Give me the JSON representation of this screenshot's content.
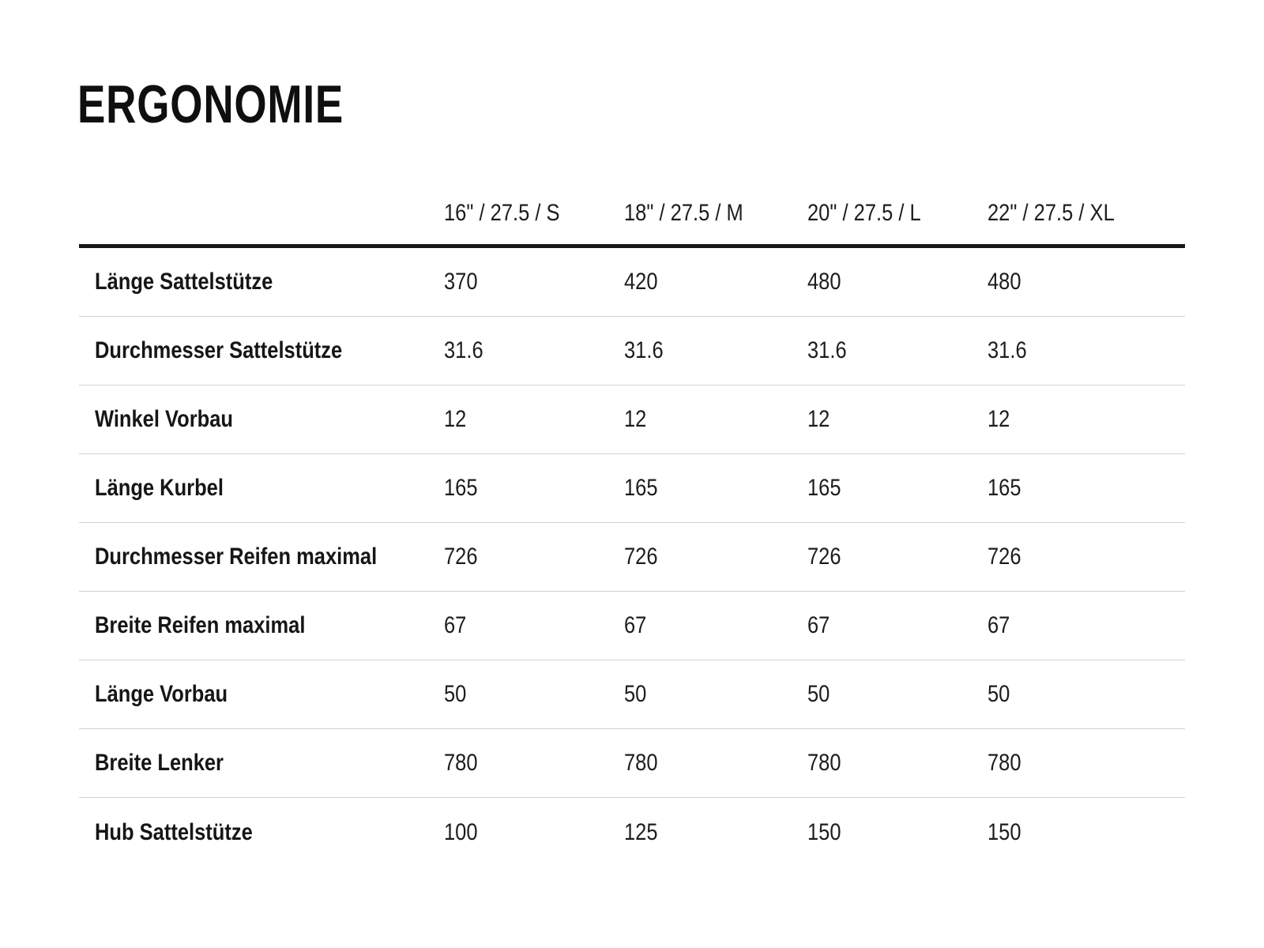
{
  "page": {
    "title": "ERGONOMIE"
  },
  "table": {
    "column_headers": [
      "16\" / 27.5 / S",
      "18\" / 27.5 / M",
      "20\" / 27.5 / L",
      "22\" / 27.5 / XL"
    ],
    "rows": [
      {
        "label": "Länge Sattelstütze",
        "values": [
          "370",
          "420",
          "480",
          "480"
        ]
      },
      {
        "label": "Durchmesser Sattelstütze",
        "values": [
          "31.6",
          "31.6",
          "31.6",
          "31.6"
        ]
      },
      {
        "label": "Winkel Vorbau",
        "values": [
          "12",
          "12",
          "12",
          "12"
        ]
      },
      {
        "label": "Länge Kurbel",
        "values": [
          "165",
          "165",
          "165",
          "165"
        ]
      },
      {
        "label": "Durchmesser Reifen maximal",
        "values": [
          "726",
          "726",
          "726",
          "726"
        ]
      },
      {
        "label": "Breite Reifen maximal",
        "values": [
          "67",
          "67",
          "67",
          "67"
        ]
      },
      {
        "label": "Länge Vorbau",
        "values": [
          "50",
          "50",
          "50",
          "50"
        ]
      },
      {
        "label": "Breite Lenker",
        "values": [
          "780",
          "780",
          "780",
          "780"
        ]
      },
      {
        "label": "Hub Sattelstütze",
        "values": [
          "100",
          "125",
          "150",
          "150"
        ]
      }
    ]
  },
  "colors": {
    "background": "#ffffff",
    "text": "#1d1d1d",
    "title_text": "#0f0f0f",
    "header_rule": "#161616",
    "row_separator": "#cdd2d5"
  }
}
